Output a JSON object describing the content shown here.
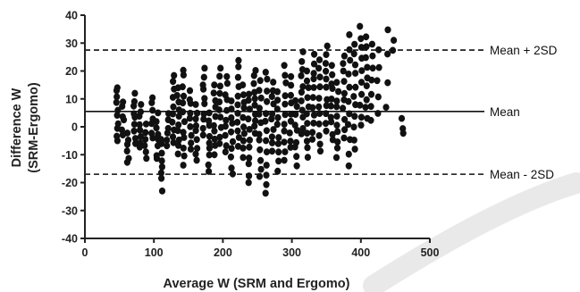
{
  "chart_data": {
    "type": "scatter",
    "title": "",
    "xlabel": "Average W (SRM and Ergomo)",
    "ylabel_lines": [
      "Difference W",
      "(SRM-Ergomo)"
    ],
    "xlim": [
      0,
      500
    ],
    "ylim": [
      -40,
      40
    ],
    "x_ticks": [
      0,
      100,
      200,
      300,
      400,
      500
    ],
    "y_ticks": [
      -40,
      -30,
      -20,
      -10,
      0,
      10,
      20,
      30,
      40
    ],
    "grid": false,
    "reference_lines": [
      {
        "label": "Mean + 2SD",
        "y": 27.5,
        "style": "dashed"
      },
      {
        "label": "Mean",
        "y": 5.5,
        "style": "solid"
      },
      {
        "label": "Mean - 2SD",
        "y": -17,
        "style": "dashed"
      }
    ],
    "point_color": "#111111",
    "background_arc_color": "#e9e9e9",
    "seed": 7,
    "point_columns": [
      {
        "x": 47,
        "ymin": -5,
        "ymax": 13,
        "n": 9,
        "extra": [
          14
        ]
      },
      {
        "x": 55,
        "ymin": -3,
        "ymax": 9,
        "n": 6
      },
      {
        "x": 62,
        "ymin": -13,
        "ymax": -2,
        "n": 6
      },
      {
        "x": 72,
        "ymin": -6,
        "ymax": 12,
        "n": 9
      },
      {
        "x": 80,
        "ymin": -8,
        "ymax": 8,
        "n": 8
      },
      {
        "x": 88,
        "ymin": -12,
        "ymax": 1,
        "n": 6
      },
      {
        "x": 97,
        "ymin": -4,
        "ymax": 11,
        "n": 7
      },
      {
        "x": 105,
        "ymin": -12,
        "ymax": 5,
        "n": 8
      },
      {
        "x": 112,
        "ymin": -19,
        "ymax": -4,
        "n": 7,
        "extra": [
          -23
        ]
      },
      {
        "x": 120,
        "ymin": -7,
        "ymax": 5,
        "n": 6
      },
      {
        "x": 128,
        "ymin": -6,
        "ymax": 19,
        "n": 10
      },
      {
        "x": 135,
        "ymin": -10,
        "ymax": 14,
        "n": 10
      },
      {
        "x": 143,
        "ymin": -14,
        "ymax": 21,
        "n": 12
      },
      {
        "x": 153,
        "ymin": -8,
        "ymax": 13,
        "n": 9
      },
      {
        "x": 162,
        "ymin": -12,
        "ymax": 8,
        "n": 9
      },
      {
        "x": 172,
        "ymin": -3,
        "ymax": 21,
        "n": 10
      },
      {
        "x": 180,
        "ymin": -16,
        "ymax": 5,
        "n": 9
      },
      {
        "x": 188,
        "ymin": -10,
        "ymax": 15,
        "n": 10
      },
      {
        "x": 196,
        "ymin": -6,
        "ymax": 21,
        "n": 10
      },
      {
        "x": 205,
        "ymin": -9,
        "ymax": 18,
        "n": 10
      },
      {
        "x": 213,
        "ymin": -17,
        "ymax": 10,
        "n": 10
      },
      {
        "x": 222,
        "ymin": -7,
        "ymax": 24,
        "n": 11
      },
      {
        "x": 230,
        "ymin": -11,
        "ymax": 15,
        "n": 10
      },
      {
        "x": 238,
        "ymin": -20,
        "ymax": 12,
        "n": 11
      },
      {
        "x": 246,
        "ymin": -3,
        "ymax": 21,
        "n": 10
      },
      {
        "x": 254,
        "ymin": -18,
        "ymax": 17,
        "n": 12
      },
      {
        "x": 263,
        "ymin": -24,
        "ymax": 20,
        "n": 13
      },
      {
        "x": 272,
        "ymin": -9,
        "ymax": 16,
        "n": 10
      },
      {
        "x": 280,
        "ymin": -16,
        "ymax": 13,
        "n": 10
      },
      {
        "x": 290,
        "ymin": -12,
        "ymax": 22,
        "n": 11
      },
      {
        "x": 298,
        "ymin": -8,
        "ymax": 18,
        "n": 9
      },
      {
        "x": 306,
        "ymin": -14,
        "ymax": 10,
        "n": 9
      },
      {
        "x": 315,
        "ymin": -3,
        "ymax": 27,
        "n": 11
      },
      {
        "x": 323,
        "ymin": -11,
        "ymax": 20,
        "n": 11
      },
      {
        "x": 331,
        "ymin": -5,
        "ymax": 26,
        "n": 11
      },
      {
        "x": 340,
        "ymin": -9,
        "ymax": 24,
        "n": 11
      },
      {
        "x": 350,
        "ymin": -2,
        "ymax": 29,
        "n": 11
      },
      {
        "x": 358,
        "ymin": -5,
        "ymax": 22,
        "n": 10
      },
      {
        "x": 366,
        "ymin": -11,
        "ymax": 16,
        "n": 10
      },
      {
        "x": 375,
        "ymin": -4,
        "ymax": 26,
        "n": 10
      },
      {
        "x": 383,
        "ymin": -14,
        "ymax": 33,
        "n": 11
      },
      {
        "x": 391,
        "ymin": -8,
        "ymax": 30,
        "n": 11
      },
      {
        "x": 400,
        "ymin": 0,
        "ymax": 36,
        "n": 10
      },
      {
        "x": 408,
        "ymin": 3,
        "ymax": 33,
        "n": 9
      },
      {
        "x": 416,
        "ymin": 2,
        "ymax": 30,
        "n": 7
      },
      {
        "x": 425,
        "ymin": 4,
        "ymax": 28,
        "n": 5
      },
      {
        "x": 438,
        "ymin": 7,
        "ymax": 35,
        "n": 4
      },
      {
        "x": 447,
        "ymin": 27,
        "ymax": 31,
        "n": 2
      },
      {
        "x": 460,
        "ymin": -3,
        "ymax": 3,
        "n": 3
      }
    ]
  }
}
